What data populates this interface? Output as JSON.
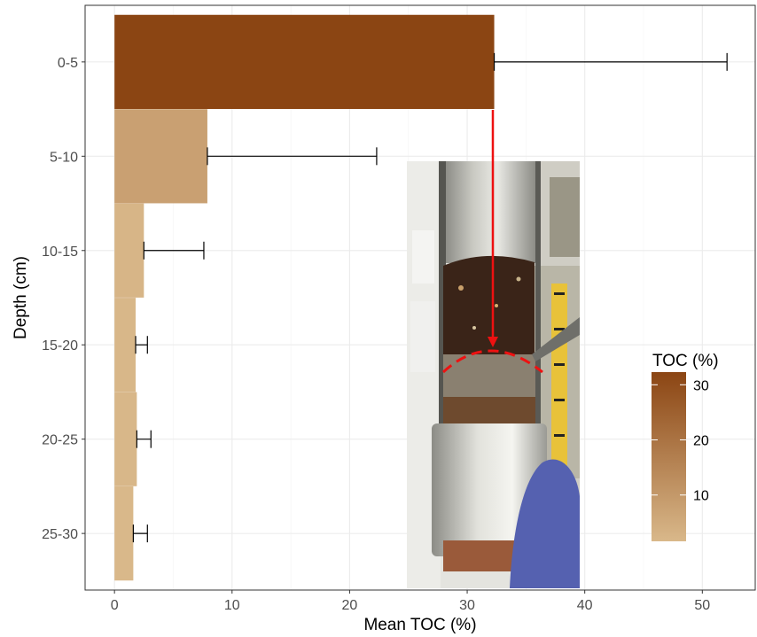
{
  "chart_data": {
    "type": "bar",
    "orientation": "horizontal",
    "title": "",
    "xlabel": "Mean TOC (%)",
    "ylabel": "Depth (cm)",
    "xlim": [
      -2.5,
      54.5
    ],
    "xticks": [
      0,
      10,
      20,
      30,
      40,
      50
    ],
    "categories": [
      "0-5",
      "5-10",
      "10-15",
      "15-20",
      "20-25",
      "25-30"
    ],
    "values": [
      32.3,
      7.9,
      2.5,
      1.8,
      1.9,
      1.6
    ],
    "error_upper": [
      52.1,
      22.3,
      7.6,
      2.8,
      3.1,
      2.8
    ],
    "grid": true,
    "fill_scale": {
      "title": "TOC (%)",
      "ticks": [
        10,
        20,
        30
      ],
      "range": [
        1.6,
        32.3
      ],
      "low_color": "#d9b88a",
      "high_color": "#8b4513"
    },
    "legend_position": "right",
    "inset_photo": "soil core sample in a metal tube with measuring tape, gloved hand, red dashed boundary arc and red arrow linking top bar to core"
  }
}
